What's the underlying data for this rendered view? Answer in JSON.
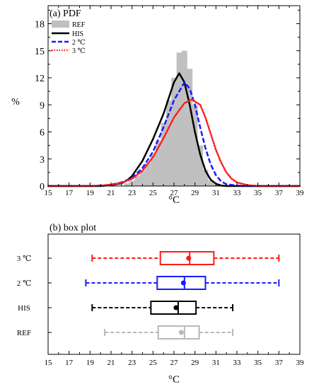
{
  "chart_data": [
    {
      "type": "area",
      "title": "(a) PDF",
      "xlabel": "°C",
      "ylabel": "%",
      "xlim": [
        15,
        39
      ],
      "ylim": [
        0,
        20
      ],
      "xticks": [
        "15",
        "17",
        "19",
        "21",
        "23",
        "25",
        "27",
        "29",
        "31",
        "33",
        "35",
        "37",
        "39"
      ],
      "yticks": [
        "0",
        "3",
        "6",
        "9",
        "12",
        "15",
        "18"
      ],
      "legend_position": "top-left",
      "legend": [
        "REF",
        "HIS",
        "2 ℃",
        "3 ℃"
      ],
      "histogram": {
        "name": "REF",
        "color": "#c0c0c0",
        "bin_width": 0.5,
        "bins": [
          {
            "x": 22.5,
            "y": 0.3
          },
          {
            "x": 23.0,
            "y": 0.6
          },
          {
            "x": 23.5,
            "y": 1.1
          },
          {
            "x": 24.0,
            "y": 1.7
          },
          {
            "x": 24.5,
            "y": 2.5
          },
          {
            "x": 25.0,
            "y": 3.5
          },
          {
            "x": 25.5,
            "y": 5.0
          },
          {
            "x": 26.0,
            "y": 7.0
          },
          {
            "x": 26.5,
            "y": 9.5
          },
          {
            "x": 27.0,
            "y": 12.0
          },
          {
            "x": 27.5,
            "y": 14.8
          },
          {
            "x": 28.0,
            "y": 15.0
          },
          {
            "x": 28.5,
            "y": 13.0
          },
          {
            "x": 29.0,
            "y": 9.0
          },
          {
            "x": 29.5,
            "y": 4.5
          },
          {
            "x": 30.0,
            "y": 1.8
          },
          {
            "x": 30.5,
            "y": 0.6
          },
          {
            "x": 31.0,
            "y": 0.2
          }
        ]
      },
      "series": [
        {
          "name": "HIS",
          "color": "#000000",
          "dash": "solid",
          "points": [
            [
              15,
              0
            ],
            [
              20,
              0
            ],
            [
              21,
              0.1
            ],
            [
              22,
              0.3
            ],
            [
              22.5,
              0.6
            ],
            [
              23,
              1.1
            ],
            [
              24,
              2.8
            ],
            [
              25,
              5.2
            ],
            [
              26,
              8.0
            ],
            [
              27,
              11.5
            ],
            [
              27.5,
              12.5
            ],
            [
              28,
              11.5
            ],
            [
              28.5,
              9.0
            ],
            [
              29,
              6.0
            ],
            [
              29.5,
              3.5
            ],
            [
              30,
              1.7
            ],
            [
              30.5,
              0.7
            ],
            [
              31,
              0.25
            ],
            [
              31.5,
              0.05
            ],
            [
              32,
              0
            ],
            [
              39,
              0
            ]
          ]
        },
        {
          "name": "2 ℃",
          "color": "#1a1aff",
          "dash": "dash",
          "points": [
            [
              15,
              0
            ],
            [
              19,
              0
            ],
            [
              20,
              0.05
            ],
            [
              21,
              0.15
            ],
            [
              22,
              0.4
            ],
            [
              23,
              0.9
            ],
            [
              24,
              2.0
            ],
            [
              25,
              3.8
            ],
            [
              26,
              6.5
            ],
            [
              27,
              9.5
            ],
            [
              28,
              11.5
            ],
            [
              28.5,
              10.8
            ],
            [
              29,
              9.0
            ],
            [
              29.5,
              6.5
            ],
            [
              30,
              4.2
            ],
            [
              30.5,
              2.4
            ],
            [
              31,
              1.2
            ],
            [
              31.5,
              0.5
            ],
            [
              32,
              0.2
            ],
            [
              33,
              0.05
            ],
            [
              34,
              0
            ],
            [
              39,
              0
            ]
          ]
        },
        {
          "name": "3 ℃",
          "color": "#ff1a1a",
          "dash": "dot",
          "points": [
            [
              15,
              0
            ],
            [
              19,
              0
            ],
            [
              20,
              0.05
            ],
            [
              21,
              0.15
            ],
            [
              22,
              0.35
            ],
            [
              23,
              0.8
            ],
            [
              24,
              1.7
            ],
            [
              25,
              3.2
            ],
            [
              26,
              5.3
            ],
            [
              27,
              7.6
            ],
            [
              28,
              9.2
            ],
            [
              28.7,
              9.6
            ],
            [
              29.5,
              9.0
            ],
            [
              30,
              7.6
            ],
            [
              30.5,
              5.8
            ],
            [
              31,
              4.0
            ],
            [
              31.5,
              2.6
            ],
            [
              32,
              1.5
            ],
            [
              32.5,
              0.8
            ],
            [
              33,
              0.4
            ],
            [
              34,
              0.1
            ],
            [
              35,
              0
            ],
            [
              39,
              0
            ]
          ]
        }
      ]
    },
    {
      "type": "box",
      "title": "(b) box plot",
      "xlabel": "°C",
      "xlim": [
        15,
        39
      ],
      "xticks": [
        "15",
        "17",
        "19",
        "21",
        "23",
        "25",
        "27",
        "29",
        "31",
        "33",
        "35",
        "37",
        "39"
      ],
      "series": [
        {
          "name": "3 ℃",
          "color": "#ff1a1a",
          "min": 19.2,
          "q1": 25.7,
          "median": 28.5,
          "mean": 28.4,
          "q3": 30.8,
          "max": 37.0
        },
        {
          "name": "2 ℃",
          "color": "#1a1aff",
          "min": 18.6,
          "q1": 25.4,
          "median": 28.0,
          "mean": 27.9,
          "q3": 30.0,
          "max": 37.0
        },
        {
          "name": "HIS",
          "color": "#000000",
          "min": 19.2,
          "q1": 24.8,
          "median": 27.4,
          "mean": 27.2,
          "q3": 29.1,
          "max": 32.6
        },
        {
          "name": "REF",
          "color": "#b8b8b8",
          "min": 20.4,
          "q1": 25.5,
          "median": 28.0,
          "mean": 27.7,
          "q3": 29.4,
          "max": 32.6
        }
      ]
    }
  ]
}
